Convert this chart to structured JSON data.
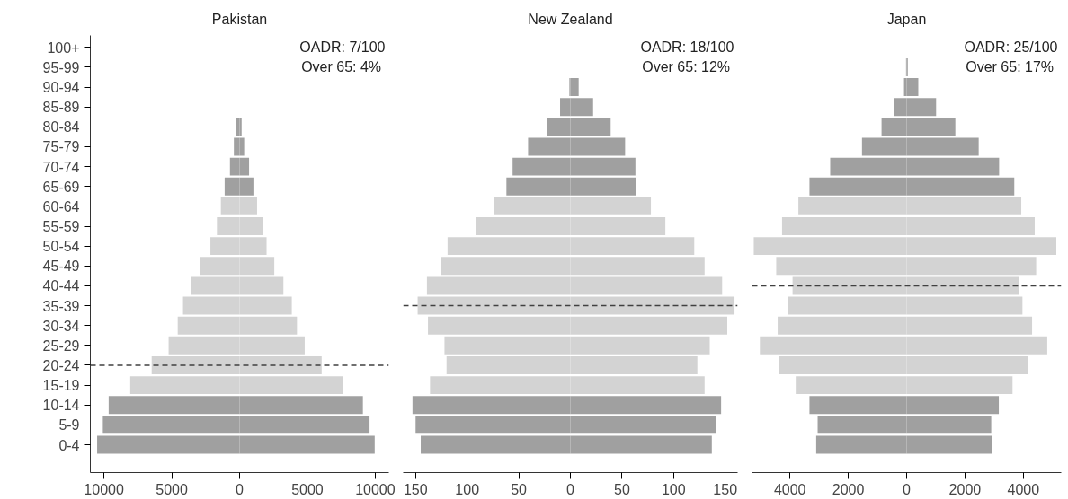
{
  "chart_data": [
    {
      "type": "bar",
      "orientation": "horizontal",
      "title": "Pakistan",
      "grid": false,
      "stacked": true,
      "categories": [
        "100+",
        "95-99",
        "90-94",
        "85-89",
        "80-84",
        "75-79",
        "70-74",
        "65-69",
        "60-64",
        "55-59",
        "50-54",
        "45-49",
        "40-44",
        "35-39",
        "30-34",
        "25-29",
        "20-24",
        "15-19",
        "10-14",
        "5-9",
        "0-4"
      ],
      "series": [
        {
          "values": [
            0,
            0,
            0,
            0,
            -250,
            -420,
            -710,
            -1100,
            -1380,
            -1670,
            -2150,
            -2920,
            -3560,
            -4170,
            -4560,
            -5230,
            -6480,
            -8060,
            -9650,
            -10080,
            -10500
          ],
          "colors": [
            "#a0a0a0",
            "#a0a0a0",
            "#a0a0a0",
            "#a0a0a0",
            "#a0a0a0",
            "#a0a0a0",
            "#a0a0a0",
            "#a0a0a0",
            "#d3d3d3",
            "#d3d3d3",
            "#d3d3d3",
            "#d3d3d3",
            "#d3d3d3",
            "#d3d3d3",
            "#d3d3d3",
            "#d3d3d3",
            "#d3d3d3",
            "#d3d3d3",
            "#a0a0a0",
            "#a0a0a0",
            "#a0a0a0"
          ]
        },
        {
          "values": [
            0,
            0,
            0,
            0,
            150,
            340,
            700,
            1020,
            1290,
            1690,
            1990,
            2560,
            3230,
            3850,
            4230,
            4800,
            6050,
            7630,
            9090,
            9580,
            9960
          ],
          "colors": [
            "#a0a0a0",
            "#a0a0a0",
            "#a0a0a0",
            "#a0a0a0",
            "#a0a0a0",
            "#a0a0a0",
            "#a0a0a0",
            "#a0a0a0",
            "#d3d3d3",
            "#d3d3d3",
            "#d3d3d3",
            "#d3d3d3",
            "#d3d3d3",
            "#d3d3d3",
            "#d3d3d3",
            "#d3d3d3",
            "#d3d3d3",
            "#d3d3d3",
            "#a0a0a0",
            "#a0a0a0",
            "#a0a0a0"
          ]
        }
      ],
      "xlim": [
        -11000,
        11000
      ],
      "xticks": [
        {
          "value": -10000,
          "label": "10000"
        },
        {
          "value": -5000,
          "label": "5000"
        },
        0,
        5000,
        10000
      ],
      "ref_lines": [
        {
          "axis": "y",
          "value": "20-24",
          "line_style": "dashed",
          "color": "#404040"
        }
      ],
      "annotations": [
        "OADR: 7/100",
        "Over 65:  4%"
      ]
    },
    {
      "type": "bar",
      "orientation": "horizontal",
      "title": "New Zealand",
      "grid": false,
      "stacked": true,
      "tick_labels": "x",
      "categories": [
        "100+",
        "95-99",
        "90-94",
        "85-89",
        "80-84",
        "75-79",
        "70-74",
        "65-69",
        "60-64",
        "55-59",
        "50-54",
        "45-49",
        "40-44",
        "35-39",
        "30-34",
        "25-29",
        "20-24",
        "15-19",
        "10-14",
        "5-9",
        "0-4"
      ],
      "series": [
        {
          "values": [
            0,
            0,
            -1,
            -10,
            -23,
            -41,
            -56,
            -62,
            -74,
            -91,
            -119,
            -125,
            -139,
            -148,
            -138,
            -122,
            -120,
            -136,
            -153,
            -150,
            -145
          ],
          "colors": [
            "#a0a0a0",
            "#a0a0a0",
            "#a0a0a0",
            "#a0a0a0",
            "#a0a0a0",
            "#a0a0a0",
            "#a0a0a0",
            "#a0a0a0",
            "#d3d3d3",
            "#d3d3d3",
            "#d3d3d3",
            "#d3d3d3",
            "#d3d3d3",
            "#d3d3d3",
            "#d3d3d3",
            "#d3d3d3",
            "#d3d3d3",
            "#d3d3d3",
            "#a0a0a0",
            "#a0a0a0",
            "#a0a0a0"
          ]
        },
        {
          "values": [
            0,
            0,
            8,
            22,
            39,
            53,
            63,
            64,
            78,
            92,
            120,
            130,
            147,
            159,
            152,
            135,
            123,
            130,
            146,
            141,
            137
          ],
          "colors": [
            "#a0a0a0",
            "#a0a0a0",
            "#a0a0a0",
            "#a0a0a0",
            "#a0a0a0",
            "#a0a0a0",
            "#a0a0a0",
            "#a0a0a0",
            "#d3d3d3",
            "#d3d3d3",
            "#d3d3d3",
            "#d3d3d3",
            "#d3d3d3",
            "#d3d3d3",
            "#d3d3d3",
            "#d3d3d3",
            "#d3d3d3",
            "#d3d3d3",
            "#a0a0a0",
            "#a0a0a0",
            "#a0a0a0"
          ]
        }
      ],
      "xlim": [
        -162,
        162
      ],
      "xticks": [
        {
          "value": -150,
          "label": "150"
        },
        {
          "value": -100,
          "label": "100"
        },
        {
          "value": -50,
          "label": "50"
        },
        0,
        50,
        100,
        150
      ],
      "ref_lines": [
        {
          "axis": "y",
          "value": "35-39",
          "line_style": "dashed",
          "color": "#404040"
        }
      ],
      "annotations": [
        "OADR: 18/100",
        "Over 65:  12%"
      ]
    },
    {
      "type": "bar",
      "orientation": "horizontal",
      "title": "Japan",
      "grid": false,
      "stacked": true,
      "tick_labels": "x",
      "categories": [
        "100+",
        "95-99",
        "90-94",
        "85-89",
        "80-84",
        "75-79",
        "70-74",
        "65-69",
        "60-64",
        "55-59",
        "50-54",
        "45-49",
        "40-44",
        "35-39",
        "30-34",
        "25-29",
        "20-24",
        "15-19",
        "10-14",
        "5-9",
        "0-4"
      ],
      "series": [
        {
          "values": [
            0,
            -20,
            -90,
            -430,
            -860,
            -1530,
            -2620,
            -3330,
            -3710,
            -4270,
            -5240,
            -4470,
            -3910,
            -4080,
            -4420,
            -5030,
            -4370,
            -3800,
            -3330,
            -3050,
            -3100
          ],
          "colors": [
            "#a0a0a0",
            "#a0a0a0",
            "#a0a0a0",
            "#a0a0a0",
            "#a0a0a0",
            "#a0a0a0",
            "#a0a0a0",
            "#a0a0a0",
            "#d3d3d3",
            "#d3d3d3",
            "#d3d3d3",
            "#d3d3d3",
            "#d3d3d3",
            "#d3d3d3",
            "#d3d3d3",
            "#d3d3d3",
            "#d3d3d3",
            "#d3d3d3",
            "#a0a0a0",
            "#a0a0a0",
            "#a0a0a0"
          ]
        },
        {
          "values": [
            0,
            40,
            400,
            1010,
            1670,
            2470,
            3170,
            3690,
            3930,
            4390,
            5130,
            4440,
            3840,
            3970,
            4300,
            4820,
            4150,
            3630,
            3160,
            2900,
            2940
          ],
          "colors": [
            "#a0a0a0",
            "#a0a0a0",
            "#a0a0a0",
            "#a0a0a0",
            "#a0a0a0",
            "#a0a0a0",
            "#a0a0a0",
            "#a0a0a0",
            "#d3d3d3",
            "#d3d3d3",
            "#d3d3d3",
            "#d3d3d3",
            "#d3d3d3",
            "#d3d3d3",
            "#d3d3d3",
            "#d3d3d3",
            "#d3d3d3",
            "#d3d3d3",
            "#a0a0a0",
            "#a0a0a0",
            "#a0a0a0"
          ]
        }
      ],
      "xlim": [
        -5300,
        5300
      ],
      "xticks": [
        {
          "value": -4000,
          "label": "4000"
        },
        {
          "value": -2000,
          "label": "2000"
        },
        0,
        2000,
        4000
      ],
      "ref_lines": [
        {
          "axis": "y",
          "value": "40-44",
          "line_style": "dashed",
          "color": "#404040"
        }
      ],
      "annotations": [
        "OADR: 25/100",
        "Over 65:  17%"
      ]
    }
  ]
}
